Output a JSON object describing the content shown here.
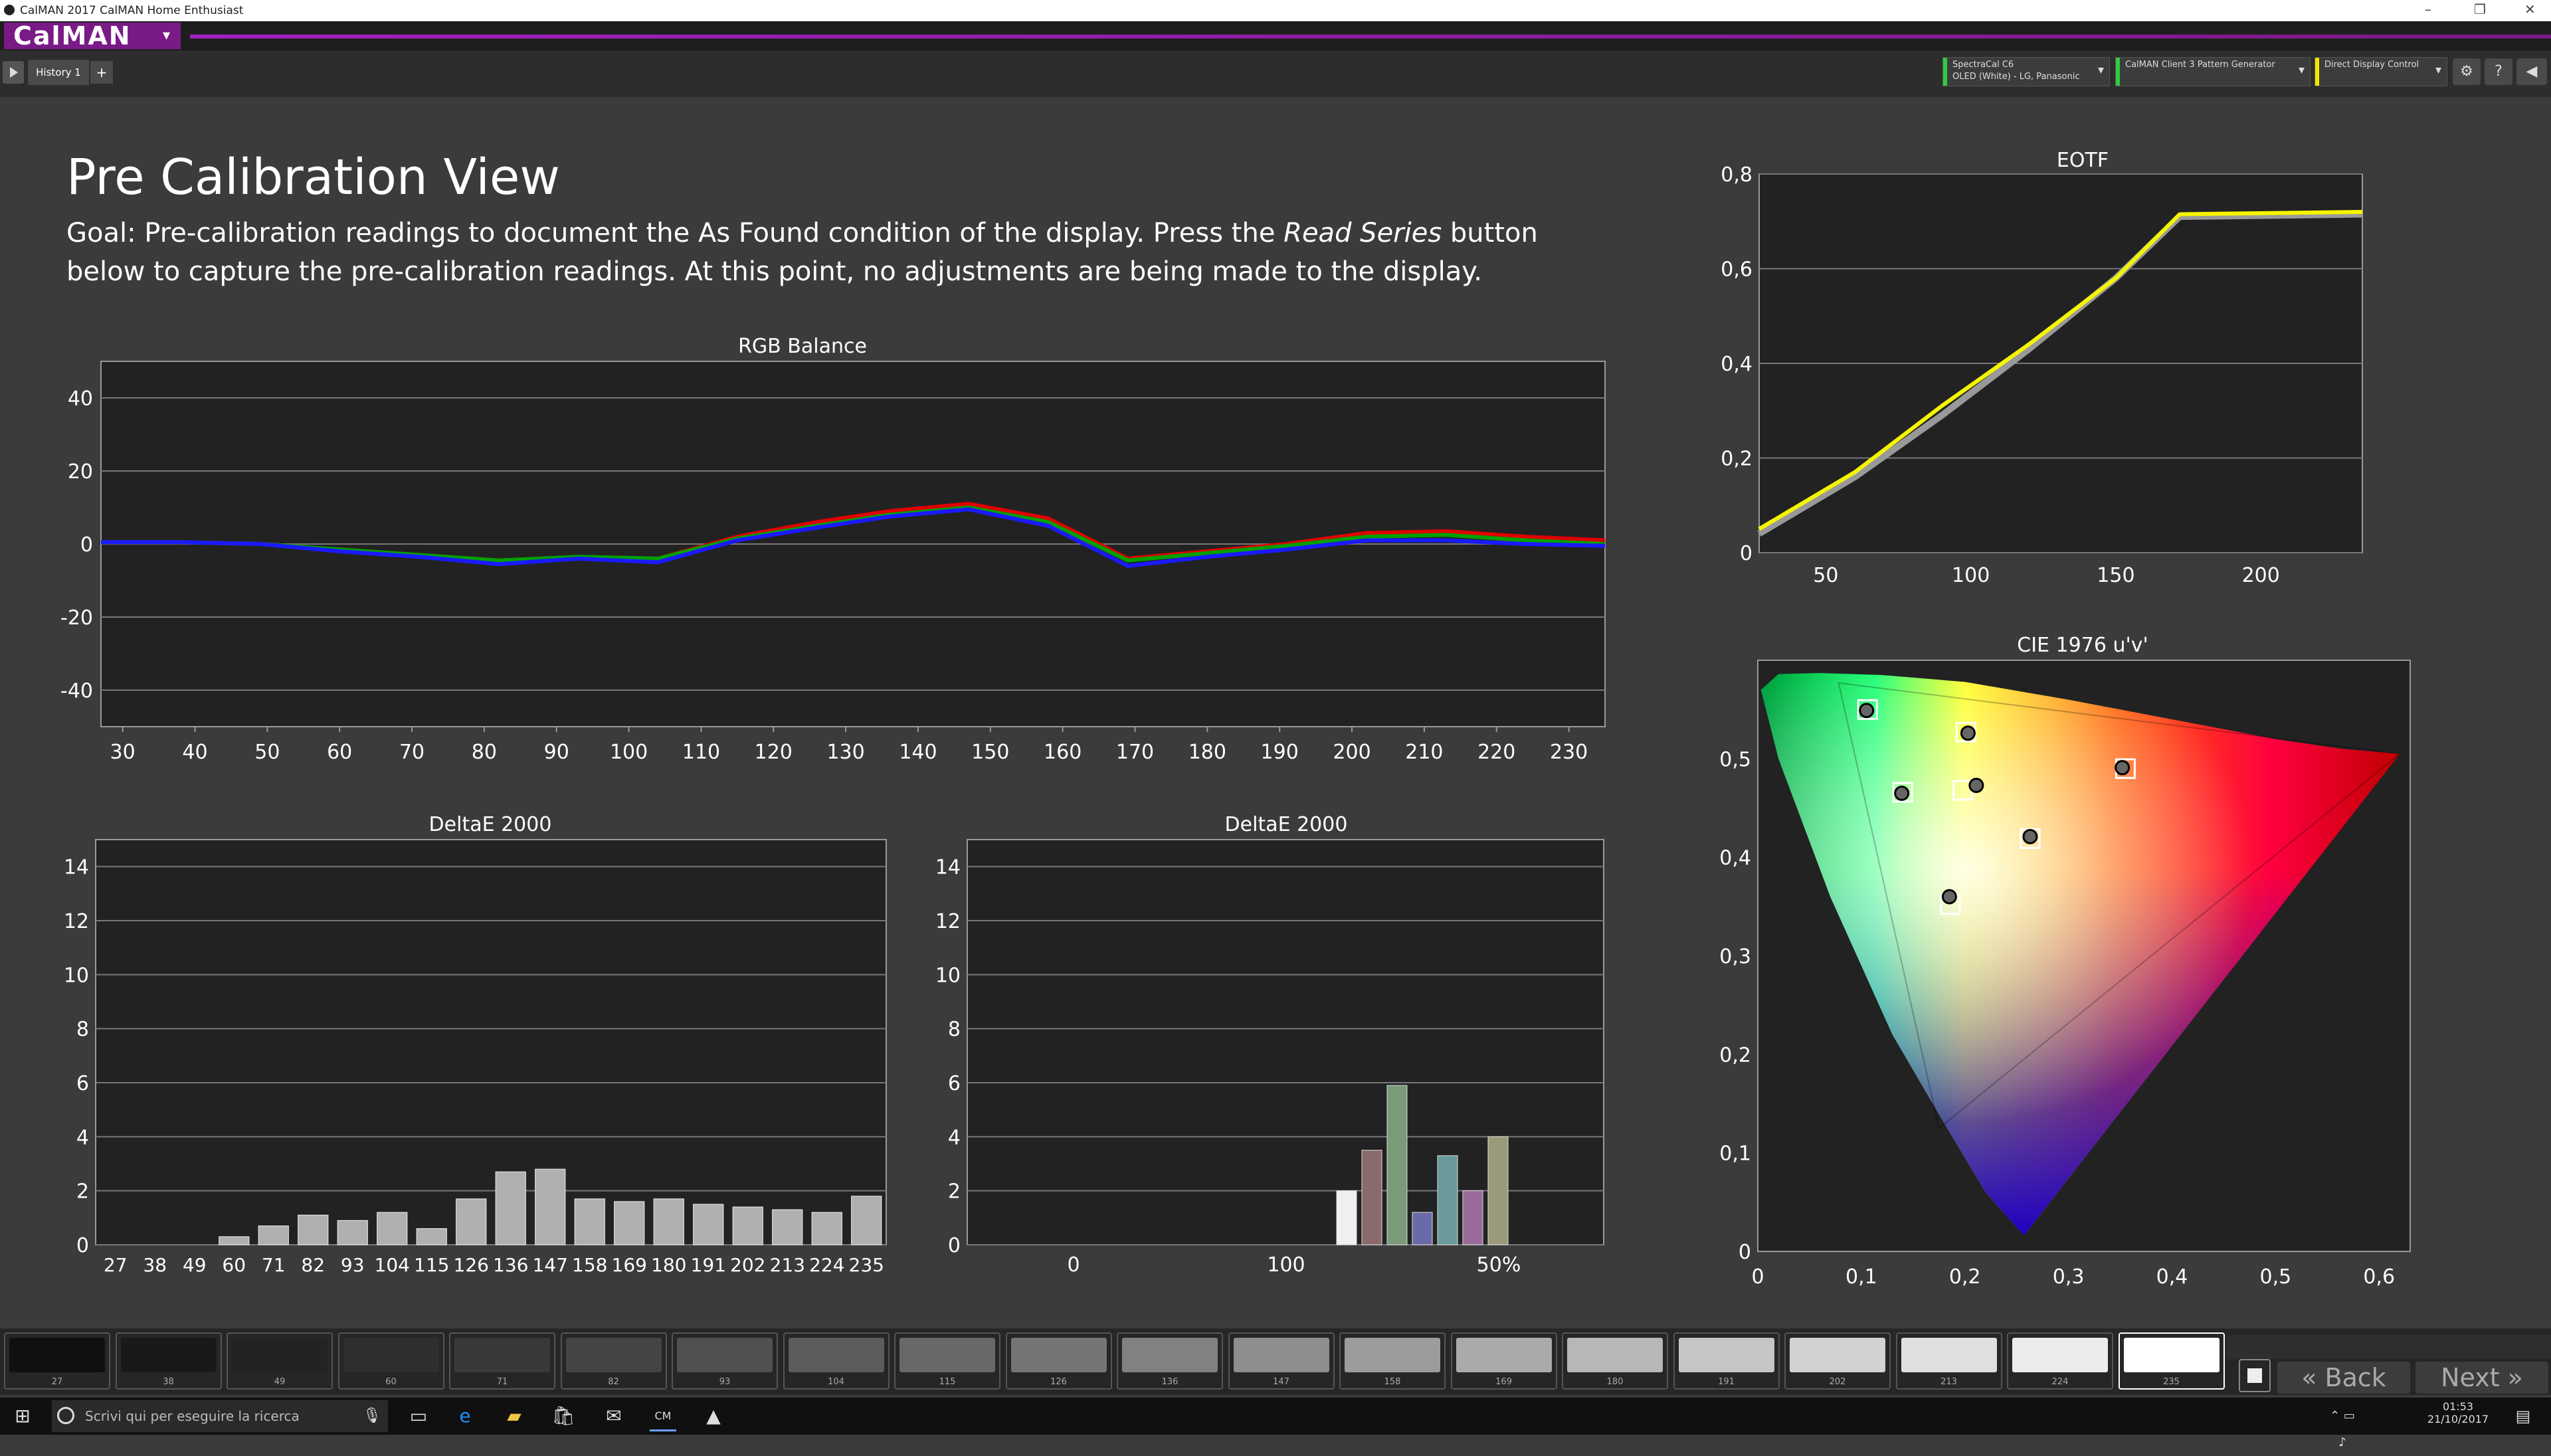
{
  "window": {
    "title": "CalMAN 2017 CalMAN Home Enthusiast",
    "controls": [
      "–",
      "❐",
      "✕"
    ]
  },
  "app": {
    "logo": "CalMAN",
    "logo_arrow": "▾"
  },
  "history": {
    "tab": "History 1",
    "add": "+"
  },
  "devices": [
    {
      "line1": "SpectraCal C6",
      "line2": "OLED (White) - LG, Panasonic",
      "color": "#2ecc40"
    },
    {
      "line1": "CalMAN Client 3 Pattern Generator",
      "line2": "",
      "color": "#2ecc40"
    },
    {
      "line1": "Direct Display Control",
      "line2": "",
      "color": "#f5e400"
    }
  ],
  "toolbar_icons": [
    "gear-icon",
    "help-icon",
    "info-icon",
    "collapse-icon"
  ],
  "page": {
    "title": "Pre Calibration View",
    "goal_prefix": "Goal: Pre-calibration readings to document the As Found condition of the display. Press the ",
    "goal_em": "Read Series",
    "goal_suffix": " button below to capture the pre-calibration readings. At this point, no adjustments are being made to the display."
  },
  "chart_data": [
    {
      "type": "line",
      "title": "RGB Balance",
      "x": [
        27,
        38,
        49,
        60,
        71,
        82,
        93,
        104,
        115,
        126,
        136,
        147,
        158,
        169,
        180,
        191,
        202,
        213,
        224,
        235
      ],
      "xticks": [
        30,
        40,
        50,
        60,
        70,
        80,
        90,
        100,
        110,
        120,
        130,
        140,
        150,
        160,
        170,
        180,
        190,
        200,
        210,
        220,
        230
      ],
      "yticks": [
        40,
        20,
        0,
        -20,
        -40
      ],
      "ylim": [
        -50,
        50
      ],
      "xlim": [
        27,
        235
      ],
      "series": [
        {
          "color": "#e00000",
          "values": [
            0.5,
            0.5,
            0,
            -1.5,
            -3,
            -4.5,
            -3.5,
            -4,
            2,
            6,
            9,
            11,
            7,
            -4,
            -2,
            0,
            3,
            3.5,
            2,
            1
          ]
        },
        {
          "color": "#00a000",
          "values": [
            0.5,
            0.5,
            0,
            -1.5,
            -3,
            -4.5,
            -3.5,
            -4,
            1.5,
            5,
            8,
            10,
            6,
            -4.5,
            -2.5,
            -0.5,
            2,
            2.5,
            1,
            0
          ]
        },
        {
          "color": "#1a1aff",
          "values": [
            0.5,
            0.5,
            0,
            -2,
            -3.5,
            -5.5,
            -4,
            -5,
            1,
            4.5,
            7.5,
            9.5,
            5,
            -6,
            -3.5,
            -1.5,
            1,
            1,
            0,
            -0.5
          ]
        }
      ]
    },
    {
      "type": "line",
      "title": "EOTF",
      "xticks": [
        50,
        100,
        150,
        200
      ],
      "yticks": [
        "0,8",
        "0,6",
        "0,4",
        "0,2",
        "0"
      ],
      "ylim": [
        0,
        0.8
      ],
      "xlim": [
        27,
        235
      ],
      "series": [
        {
          "color": "#999999",
          "x": [
            27,
            60,
            90,
            120,
            150,
            172,
            235
          ],
          "values": [
            0.04,
            0.16,
            0.29,
            0.43,
            0.58,
            0.71,
            0.715
          ]
        },
        {
          "color": "#f5f500",
          "x": [
            27,
            60,
            90,
            120,
            150,
            172,
            235
          ],
          "values": [
            0.05,
            0.17,
            0.31,
            0.44,
            0.58,
            0.715,
            0.72
          ]
        }
      ]
    },
    {
      "type": "bar",
      "title": "DeltaE 2000",
      "categories": [
        "27",
        "38",
        "49",
        "60",
        "71",
        "82",
        "93",
        "104",
        "115",
        "126",
        "136",
        "147",
        "158",
        "169",
        "180",
        "191",
        "202",
        "213",
        "224",
        "235"
      ],
      "values": [
        0,
        0,
        0,
        0.3,
        0.7,
        1.1,
        0.9,
        1.2,
        0.6,
        1.7,
        2.7,
        2.8,
        1.7,
        1.6,
        1.7,
        1.5,
        1.4,
        1.3,
        1.2,
        1.8
      ],
      "yticks": [
        14,
        12,
        10,
        8,
        6,
        4,
        2,
        0
      ],
      "ylim": [
        0,
        15
      ]
    },
    {
      "type": "bar",
      "title": "DeltaE 2000",
      "xticks": [
        "0",
        "100",
        "50%"
      ],
      "yticks": [
        14,
        12,
        10,
        8,
        6,
        4,
        2,
        0
      ],
      "ylim": [
        0,
        15
      ],
      "bars": [
        {
          "value": 2.0,
          "color": "#f0f0f0"
        },
        {
          "value": 3.5,
          "color": "#8a6a6a"
        },
        {
          "value": 5.9,
          "color": "#7a9a7a"
        },
        {
          "value": 1.2,
          "color": "#6a6aa8"
        },
        {
          "value": 3.3,
          "color": "#6a9a9a"
        },
        {
          "value": 2.0,
          "color": "#9a6a9a"
        },
        {
          "value": 4.0,
          "color": "#9a9a7a"
        }
      ]
    },
    {
      "type": "scatter",
      "title": "CIE 1976 u'v'",
      "xticks": [
        "0",
        "0,1",
        "0,2",
        "0,3",
        "0,4",
        "0,5",
        "0,6"
      ],
      "yticks": [
        "0,5",
        "0,4",
        "0,3",
        "0,2",
        "0,1",
        "0"
      ],
      "xlim": [
        0,
        0.63
      ],
      "ylim": [
        0,
        0.6
      ],
      "targets": [
        [
          0.106,
          0.55
        ],
        [
          0.14,
          0.466
        ],
        [
          0.201,
          0.527
        ],
        [
          0.198,
          0.468
        ],
        [
          0.263,
          0.419
        ],
        [
          0.355,
          0.49
        ],
        [
          0.186,
          0.352
        ]
      ],
      "measured": [
        [
          0.105,
          0.549
        ],
        [
          0.139,
          0.465
        ],
        [
          0.203,
          0.526
        ],
        [
          0.211,
          0.473
        ],
        [
          0.263,
          0.421
        ],
        [
          0.352,
          0.491
        ],
        [
          0.185,
          0.36
        ]
      ]
    }
  ],
  "swatches": [
    {
      "label": "27",
      "color": "#101010"
    },
    {
      "label": "38",
      "color": "#191919"
    },
    {
      "label": "49",
      "color": "#232323"
    },
    {
      "label": "60",
      "color": "#2e2e2e"
    },
    {
      "label": "71",
      "color": "#393939"
    },
    {
      "label": "82",
      "color": "#444444"
    },
    {
      "label": "93",
      "color": "#505050"
    },
    {
      "label": "104",
      "color": "#5c5c5c"
    },
    {
      "label": "115",
      "color": "#686868"
    },
    {
      "label": "126",
      "color": "#757575"
    },
    {
      "label": "136",
      "color": "#818181"
    },
    {
      "label": "147",
      "color": "#8e8e8e"
    },
    {
      "label": "158",
      "color": "#9c9c9c"
    },
    {
      "label": "169",
      "color": "#aaaaaa"
    },
    {
      "label": "180",
      "color": "#b7b7b7"
    },
    {
      "label": "191",
      "color": "#c5c5c5"
    },
    {
      "label": "202",
      "color": "#d2d2d2"
    },
    {
      "label": "213",
      "color": "#dfdfdf"
    },
    {
      "label": "224",
      "color": "#ececec"
    },
    {
      "label": "235",
      "color": "#ffffff"
    }
  ],
  "nav": {
    "back": "Back",
    "next": "Next"
  },
  "taskbar": {
    "search_placeholder": "Scrivi qui per eseguire la ricerca",
    "time": "01:53",
    "date": "21/10/2017"
  }
}
